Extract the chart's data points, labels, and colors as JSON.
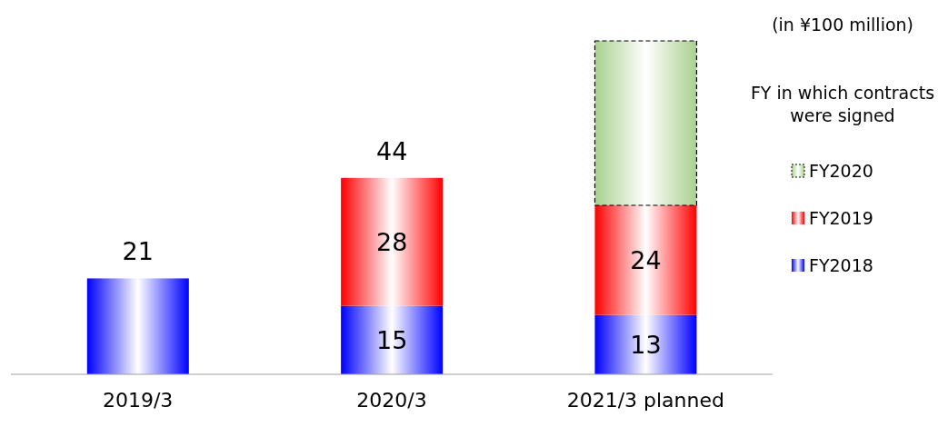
{
  "chart_data": {
    "type": "bar",
    "stacked": true,
    "categories": [
      "2019/3",
      "2020/3",
      "2021/3 planned"
    ],
    "series": [
      {
        "name": "FY2018",
        "color": "#0000ff",
        "values": [
          21,
          15,
          13
        ],
        "value_labels": [
          null,
          "15",
          "13"
        ]
      },
      {
        "name": "FY2019",
        "color": "#ff0000",
        "values": [
          null,
          28,
          24
        ],
        "value_labels": [
          null,
          "28",
          "24"
        ]
      },
      {
        "name": "FY2020",
        "color": "#a9d08e",
        "values": [
          null,
          null,
          36
        ],
        "line_style": "dashed"
      }
    ],
    "totals": [
      "21",
      "44",
      null
    ],
    "legend": "right",
    "legend_title": "FY in which contracts were signed",
    "annotations": [
      "(in ¥100 million)"
    ]
  }
}
